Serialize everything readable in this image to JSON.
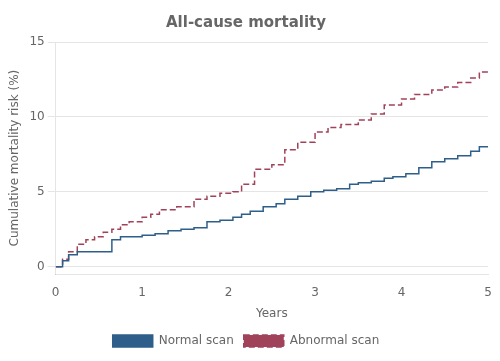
{
  "chart_data": {
    "type": "step",
    "title": "All-cause mortality",
    "xlabel": "Years",
    "ylabel": "Cumulative mortality risk (%)",
    "xlim": [
      0,
      5
    ],
    "ylim": [
      -0.5,
      15
    ],
    "xticks": [
      0,
      1,
      2,
      3,
      4,
      5
    ],
    "yticks": [
      0,
      5,
      10,
      15
    ],
    "grid": "y",
    "legend": "bottom",
    "series": [
      {
        "name": "Normal scan",
        "color": "#2e5f8a",
        "line_style": "solid",
        "x": [
          0,
          0.08,
          0.15,
          0.25,
          0.35,
          0.5,
          0.65,
          0.75,
          0.85,
          1.0,
          1.15,
          1.3,
          1.45,
          1.6,
          1.75,
          1.9,
          2.05,
          2.15,
          2.25,
          2.4,
          2.55,
          2.65,
          2.8,
          2.95,
          3.1,
          3.25,
          3.4,
          3.5,
          3.65,
          3.8,
          3.9,
          4.05,
          4.2,
          4.35,
          4.5,
          4.65,
          4.8,
          4.9,
          5.0
        ],
        "values": [
          0,
          0.4,
          0.8,
          1.0,
          1.0,
          1.0,
          1.8,
          2.0,
          2.0,
          2.1,
          2.2,
          2.4,
          2.5,
          2.6,
          3.0,
          3.1,
          3.3,
          3.5,
          3.7,
          4.0,
          4.2,
          4.5,
          4.7,
          5.0,
          5.1,
          5.2,
          5.5,
          5.6,
          5.7,
          5.9,
          6.0,
          6.2,
          6.6,
          7.0,
          7.2,
          7.4,
          7.7,
          8.0,
          8.0
        ]
      },
      {
        "name": "Abnormal scan",
        "color": "#a0435a",
        "line_style": "dashed",
        "x": [
          0,
          0.08,
          0.15,
          0.25,
          0.35,
          0.45,
          0.55,
          0.65,
          0.75,
          0.85,
          1.0,
          1.1,
          1.2,
          1.4,
          1.6,
          1.75,
          1.9,
          2.05,
          2.15,
          2.3,
          2.5,
          2.65,
          2.8,
          3.0,
          3.15,
          3.3,
          3.5,
          3.65,
          3.8,
          4.0,
          4.15,
          4.35,
          4.5,
          4.65,
          4.8,
          4.9,
          5.0
        ],
        "values": [
          0,
          0.5,
          1.0,
          1.5,
          1.8,
          2.0,
          2.3,
          2.5,
          2.8,
          3.0,
          3.3,
          3.5,
          3.8,
          4.0,
          4.5,
          4.7,
          4.9,
          5.0,
          5.5,
          6.5,
          6.8,
          7.8,
          8.3,
          9.0,
          9.3,
          9.5,
          9.8,
          10.2,
          10.8,
          11.2,
          11.5,
          11.8,
          12.0,
          12.3,
          12.6,
          13.0,
          13.2
        ]
      }
    ]
  }
}
